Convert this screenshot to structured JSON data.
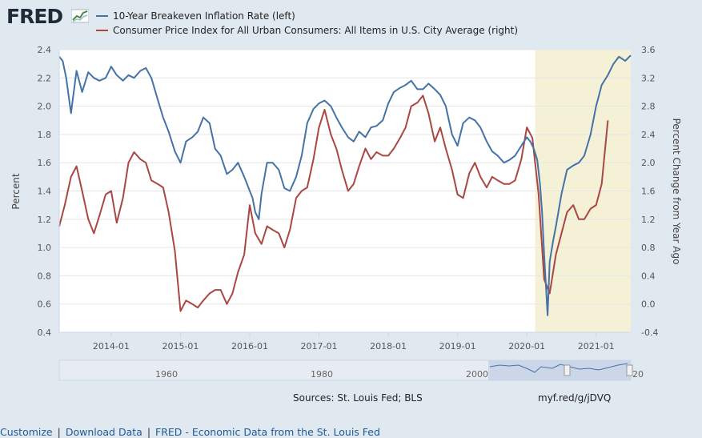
{
  "brand": {
    "logo_text": "FRED",
    "logo_icon": "fred-chart-icon"
  },
  "legend": [
    {
      "label": "10-Year Breakeven Inflation Rate (left)",
      "color": "#4572a7"
    },
    {
      "label": "Consumer Price Index for All Urban Consumers: All Items in U.S. City Average (right)",
      "color": "#aa4643"
    }
  ],
  "sources": "Sources: St. Louis Fed; BLS",
  "short_url": "myf.red/g/jDVQ",
  "footer": {
    "customize": "Customize",
    "download": "Download Data",
    "fred_link": "FRED - Economic Data from the St. Louis Fed",
    "separator": "|"
  },
  "navigator": {
    "labels": [
      "1960",
      "1980",
      "2000",
      "20"
    ]
  },
  "chart_data": {
    "type": "line",
    "x_start": 2013.25,
    "x_end": 2021.5,
    "recession": {
      "start": 2020.12,
      "end": 2021.5,
      "color": "#f4f1d7"
    },
    "left_axis": {
      "label": "Percent",
      "ylim": [
        0.4,
        2.4
      ],
      "ticks": [
        "0.4",
        "0.6",
        "0.8",
        "1.0",
        "1.2",
        "1.4",
        "1.6",
        "1.8",
        "2.0",
        "2.2",
        "2.4"
      ]
    },
    "right_axis": {
      "label": "Percent Change from Year Ago",
      "ylim": [
        -0.4,
        3.6
      ],
      "ticks": [
        "-0.4",
        "0.0",
        "0.4",
        "0.8",
        "1.2",
        "1.6",
        "2.0",
        "2.4",
        "2.8",
        "3.2",
        "3.6"
      ]
    },
    "x_ticks": [
      {
        "label": "2014-01",
        "x": 2014.0
      },
      {
        "label": "2015-01",
        "x": 2015.0
      },
      {
        "label": "2016-01",
        "x": 2016.0
      },
      {
        "label": "2017-01",
        "x": 2017.0
      },
      {
        "label": "2018-01",
        "x": 2018.0
      },
      {
        "label": "2019-01",
        "x": 2019.0
      },
      {
        "label": "2020-01",
        "x": 2020.0
      },
      {
        "label": "2021-01",
        "x": 2021.0
      }
    ],
    "series": [
      {
        "name": "10-Year Breakeven Inflation Rate (left)",
        "axis": "left",
        "color": "#4572a7",
        "x": [
          2013.25,
          2013.3,
          2013.35,
          2013.42,
          2013.5,
          2013.58,
          2013.67,
          2013.75,
          2013.83,
          2013.92,
          2014.0,
          2014.08,
          2014.17,
          2014.25,
          2014.33,
          2014.42,
          2014.5,
          2014.58,
          2014.67,
          2014.75,
          2014.83,
          2014.92,
          2015.0,
          2015.08,
          2015.17,
          2015.25,
          2015.33,
          2015.42,
          2015.5,
          2015.58,
          2015.67,
          2015.75,
          2015.83,
          2015.92,
          2016.0,
          2016.04,
          2016.08,
          2016.13,
          2016.17,
          2016.25,
          2016.33,
          2016.42,
          2016.5,
          2016.58,
          2016.67,
          2016.75,
          2016.83,
          2016.92,
          2017.0,
          2017.08,
          2017.17,
          2017.25,
          2017.33,
          2017.42,
          2017.5,
          2017.58,
          2017.67,
          2017.75,
          2017.83,
          2017.92,
          2018.0,
          2018.08,
          2018.17,
          2018.25,
          2018.33,
          2018.42,
          2018.5,
          2018.58,
          2018.67,
          2018.75,
          2018.83,
          2018.92,
          2019.0,
          2019.08,
          2019.17,
          2019.25,
          2019.33,
          2019.42,
          2019.5,
          2019.58,
          2019.67,
          2019.75,
          2019.83,
          2019.92,
          2020.0,
          2020.05,
          2020.1,
          2020.15,
          2020.19,
          2020.22,
          2020.25,
          2020.3,
          2020.33,
          2020.38,
          2020.42,
          2020.5,
          2020.58,
          2020.67,
          2020.75,
          2020.83,
          2020.92,
          2021.0,
          2021.08,
          2021.17,
          2021.25,
          2021.33,
          2021.42,
          2021.5
        ],
        "values": [
          2.35,
          2.32,
          2.2,
          1.95,
          2.25,
          2.1,
          2.24,
          2.2,
          2.18,
          2.2,
          2.28,
          2.22,
          2.18,
          2.22,
          2.2,
          2.25,
          2.27,
          2.2,
          2.05,
          1.92,
          1.82,
          1.68,
          1.6,
          1.75,
          1.78,
          1.82,
          1.92,
          1.88,
          1.7,
          1.65,
          1.52,
          1.55,
          1.6,
          1.5,
          1.4,
          1.35,
          1.25,
          1.2,
          1.38,
          1.6,
          1.6,
          1.55,
          1.42,
          1.4,
          1.5,
          1.65,
          1.88,
          1.98,
          2.02,
          2.04,
          2.0,
          1.92,
          1.85,
          1.78,
          1.75,
          1.82,
          1.78,
          1.85,
          1.86,
          1.9,
          2.02,
          2.1,
          2.13,
          2.15,
          2.18,
          2.12,
          2.12,
          2.16,
          2.12,
          2.08,
          2.0,
          1.8,
          1.72,
          1.88,
          1.92,
          1.9,
          1.85,
          1.75,
          1.68,
          1.65,
          1.6,
          1.62,
          1.65,
          1.72,
          1.78,
          1.75,
          1.7,
          1.62,
          1.45,
          1.25,
          0.95,
          0.52,
          0.9,
          1.05,
          1.15,
          1.38,
          1.55,
          1.58,
          1.6,
          1.65,
          1.8,
          2.0,
          2.15,
          2.22,
          2.3,
          2.35,
          2.32,
          2.36
        ]
      },
      {
        "name": "Consumer Price Index for All Urban Consumers: All Items in U.S. City Average (right)",
        "axis": "right",
        "color": "#aa4643",
        "x": [
          2013.25,
          2013.33,
          2013.42,
          2013.5,
          2013.58,
          2013.67,
          2013.75,
          2013.83,
          2013.92,
          2014.0,
          2014.08,
          2014.17,
          2014.25,
          2014.33,
          2014.42,
          2014.5,
          2014.58,
          2014.67,
          2014.75,
          2014.83,
          2014.92,
          2015.0,
          2015.08,
          2015.17,
          2015.25,
          2015.33,
          2015.42,
          2015.5,
          2015.58,
          2015.67,
          2015.75,
          2015.83,
          2015.92,
          2016.0,
          2016.08,
          2016.17,
          2016.25,
          2016.33,
          2016.42,
          2016.5,
          2016.58,
          2016.67,
          2016.75,
          2016.83,
          2016.92,
          2017.0,
          2017.08,
          2017.17,
          2017.25,
          2017.33,
          2017.42,
          2017.5,
          2017.58,
          2017.67,
          2017.75,
          2017.83,
          2017.92,
          2018.0,
          2018.08,
          2018.17,
          2018.25,
          2018.33,
          2018.42,
          2018.5,
          2018.58,
          2018.67,
          2018.75,
          2018.83,
          2018.92,
          2019.0,
          2019.08,
          2019.17,
          2019.25,
          2019.33,
          2019.42,
          2019.5,
          2019.58,
          2019.67,
          2019.75,
          2019.83,
          2019.92,
          2020.0,
          2020.08,
          2020.17,
          2020.25,
          2020.33,
          2020.42,
          2020.5,
          2020.58,
          2020.67,
          2020.75,
          2020.83,
          2020.92,
          2021.0,
          2021.08,
          2021.17
        ],
        "values": [
          1.1,
          1.4,
          1.8,
          1.95,
          1.6,
          1.2,
          1.0,
          1.25,
          1.55,
          1.6,
          1.15,
          1.5,
          2.0,
          2.15,
          2.05,
          2.0,
          1.75,
          1.7,
          1.65,
          1.3,
          0.75,
          -0.1,
          0.05,
          0.0,
          -0.05,
          0.05,
          0.15,
          0.2,
          0.2,
          0.0,
          0.15,
          0.45,
          0.7,
          1.4,
          1.0,
          0.85,
          1.1,
          1.05,
          1.0,
          0.8,
          1.05,
          1.5,
          1.6,
          1.65,
          2.05,
          2.5,
          2.75,
          2.4,
          2.2,
          1.9,
          1.6,
          1.7,
          1.95,
          2.2,
          2.05,
          2.15,
          2.1,
          2.1,
          2.2,
          2.35,
          2.5,
          2.8,
          2.85,
          2.95,
          2.7,
          2.3,
          2.5,
          2.2,
          1.9,
          1.55,
          1.5,
          1.85,
          2.0,
          1.8,
          1.65,
          1.8,
          1.75,
          1.7,
          1.7,
          1.75,
          2.05,
          2.5,
          2.35,
          1.55,
          0.35,
          0.15,
          0.7,
          1.0,
          1.3,
          1.4,
          1.2,
          1.2,
          1.35,
          1.4,
          1.7,
          2.6
        ]
      }
    ]
  }
}
